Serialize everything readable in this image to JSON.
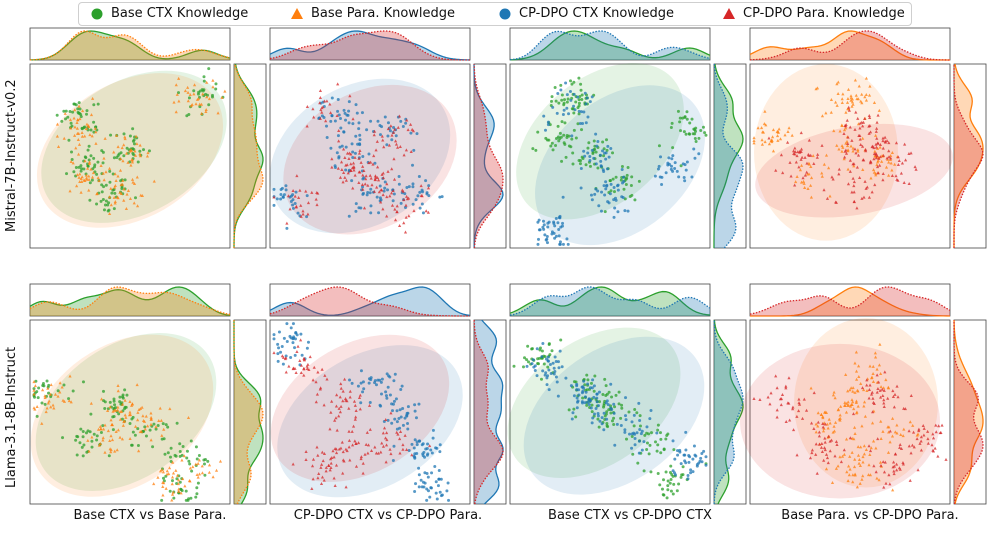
{
  "chart_data": {
    "type": "scatter",
    "legend": [
      {
        "label": "Base CTX Knowledge",
        "color": "#2ca02c",
        "marker": "circle"
      },
      {
        "label": "Base Para. Knowledge",
        "color": "#ff7f0e",
        "marker": "triangle"
      },
      {
        "label": "CP-DPO CTX Knowledge",
        "color": "#1f77b4",
        "marker": "circle"
      },
      {
        "label": "CP-DPO Para. Knowledge",
        "color": "#d62728",
        "marker": "triangle"
      }
    ],
    "rows": [
      {
        "label": "Mistral-7B-Instruct-v0.2"
      },
      {
        "label": "Llama-3.1-8B-Instruct"
      }
    ],
    "columns": [
      {
        "label": "Base CTX vs Base Para.",
        "series": [
          0,
          1
        ]
      },
      {
        "label": "CP-DPO CTX vs CP-DPO Para.",
        "series": [
          2,
          3
        ]
      },
      {
        "label": "Base CTX vs CP-DPO CTX",
        "series": [
          0,
          2
        ]
      },
      {
        "label": "Base Para. vs CP-DPO Para.",
        "series": [
          1,
          3
        ]
      }
    ],
    "panels": [
      {
        "row": 0,
        "col": 0,
        "clusters": [
          {
            "series": 0,
            "points": [
              [
                0.85,
                0.85
              ],
              [
                0.5,
                0.55
              ],
              [
                0.3,
                0.45
              ],
              [
                0.4,
                0.3
              ],
              [
                0.25,
                0.7
              ]
            ],
            "spread": 0.09,
            "count": 170
          },
          {
            "series": 1,
            "points": [
              [
                0.83,
                0.83
              ],
              [
                0.5,
                0.5
              ],
              [
                0.3,
                0.4
              ],
              [
                0.45,
                0.3
              ],
              [
                0.25,
                0.65
              ]
            ],
            "spread": 0.09,
            "count": 170
          }
        ],
        "ellipses": [
          {
            "series": 0,
            "cx": 0.52,
            "cy": 0.55,
            "rx": 0.5,
            "ry": 0.36,
            "angle": 30
          },
          {
            "series": 1,
            "cx": 0.5,
            "cy": 0.53,
            "rx": 0.5,
            "ry": 0.37,
            "angle": 30
          }
        ]
      },
      {
        "row": 0,
        "col": 1,
        "clusters": [
          {
            "series": 2,
            "points": [
              [
                0.1,
                0.25
              ],
              [
                0.4,
                0.5
              ],
              [
                0.6,
                0.65
              ],
              [
                0.35,
                0.7
              ],
              [
                0.75,
                0.3
              ],
              [
                0.5,
                0.3
              ]
            ],
            "spread": 0.1,
            "count": 180
          },
          {
            "series": 3,
            "points": [
              [
                0.15,
                0.25
              ],
              [
                0.4,
                0.45
              ],
              [
                0.62,
                0.6
              ],
              [
                0.3,
                0.75
              ],
              [
                0.7,
                0.25
              ],
              [
                0.5,
                0.35
              ]
            ],
            "spread": 0.1,
            "count": 180
          }
        ],
        "ellipses": [
          {
            "series": 2,
            "cx": 0.45,
            "cy": 0.5,
            "rx": 0.48,
            "ry": 0.38,
            "angle": 30
          },
          {
            "series": 3,
            "cx": 0.5,
            "cy": 0.48,
            "rx": 0.46,
            "ry": 0.37,
            "angle": 30
          }
        ]
      },
      {
        "row": 0,
        "col": 2,
        "clusters": [
          {
            "series": 0,
            "points": [
              [
                0.9,
                0.65
              ],
              [
                0.3,
                0.8
              ],
              [
                0.4,
                0.5
              ],
              [
                0.55,
                0.35
              ],
              [
                0.25,
                0.6
              ]
            ],
            "spread": 0.09,
            "count": 170
          },
          {
            "series": 2,
            "points": [
              [
                0.82,
                0.45
              ],
              [
                0.3,
                0.75
              ],
              [
                0.45,
                0.5
              ],
              [
                0.5,
                0.3
              ],
              [
                0.2,
                0.1
              ]
            ],
            "spread": 0.09,
            "count": 170
          }
        ],
        "ellipses": [
          {
            "series": 0,
            "cx": 0.45,
            "cy": 0.58,
            "rx": 0.48,
            "ry": 0.34,
            "angle": 40
          },
          {
            "series": 2,
            "cx": 0.55,
            "cy": 0.45,
            "rx": 0.48,
            "ry": 0.36,
            "angle": 40
          }
        ]
      },
      {
        "row": 0,
        "col": 3,
        "clusters": [
          {
            "series": 1,
            "points": [
              [
                0.1,
                0.6
              ],
              [
                0.5,
                0.8
              ],
              [
                0.5,
                0.55
              ],
              [
                0.3,
                0.4
              ],
              [
                0.65,
                0.45
              ]
            ],
            "spread": 0.09,
            "count": 160
          },
          {
            "series": 3,
            "points": [
              [
                0.25,
                0.5
              ],
              [
                0.6,
                0.5
              ],
              [
                0.75,
                0.45
              ],
              [
                0.5,
                0.3
              ],
              [
                0.55,
                0.65
              ]
            ],
            "spread": 0.1,
            "count": 170
          }
        ],
        "ellipses": [
          {
            "series": 1,
            "cx": 0.38,
            "cy": 0.52,
            "rx": 0.36,
            "ry": 0.48,
            "angle": 0
          },
          {
            "series": 3,
            "cx": 0.52,
            "cy": 0.42,
            "rx": 0.5,
            "ry": 0.24,
            "angle": 10
          }
        ]
      },
      {
        "row": 1,
        "col": 0,
        "clusters": [
          {
            "series": 0,
            "points": [
              [
                0.08,
                0.6
              ],
              [
                0.45,
                0.55
              ],
              [
                0.3,
                0.35
              ],
              [
                0.6,
                0.4
              ],
              [
                0.8,
                0.25
              ],
              [
                0.75,
                0.1
              ]
            ],
            "spread": 0.09,
            "count": 170
          },
          {
            "series": 1,
            "points": [
              [
                0.1,
                0.58
              ],
              [
                0.45,
                0.5
              ],
              [
                0.35,
                0.35
              ],
              [
                0.6,
                0.45
              ],
              [
                0.85,
                0.15
              ],
              [
                0.7,
                0.15
              ]
            ],
            "spread": 0.09,
            "count": 170
          }
        ],
        "ellipses": [
          {
            "series": 0,
            "cx": 0.48,
            "cy": 0.5,
            "rx": 0.5,
            "ry": 0.36,
            "angle": 35
          },
          {
            "series": 1,
            "cx": 0.46,
            "cy": 0.48,
            "rx": 0.5,
            "ry": 0.38,
            "angle": 35
          }
        ]
      },
      {
        "row": 1,
        "col": 1,
        "clusters": [
          {
            "series": 2,
            "points": [
              [
                0.1,
                0.85
              ],
              [
                0.55,
                0.65
              ],
              [
                0.65,
                0.5
              ],
              [
                0.75,
                0.3
              ],
              [
                0.8,
                0.1
              ]
            ],
            "spread": 0.09,
            "count": 170
          },
          {
            "series": 3,
            "points": [
              [
                0.15,
                0.75
              ],
              [
                0.35,
                0.55
              ],
              [
                0.4,
                0.3
              ],
              [
                0.3,
                0.2
              ],
              [
                0.6,
                0.35
              ]
            ],
            "spread": 0.1,
            "count": 170
          }
        ],
        "ellipses": [
          {
            "series": 2,
            "cx": 0.5,
            "cy": 0.45,
            "rx": 0.5,
            "ry": 0.36,
            "angle": 30
          },
          {
            "series": 3,
            "cx": 0.45,
            "cy": 0.52,
            "rx": 0.48,
            "ry": 0.35,
            "angle": 30
          }
        ]
      },
      {
        "row": 1,
        "col": 2,
        "clusters": [
          {
            "series": 0,
            "points": [
              [
                0.15,
                0.8
              ],
              [
                0.4,
                0.6
              ],
              [
                0.7,
                0.35
              ],
              [
                0.8,
                0.15
              ],
              [
                0.5,
                0.5
              ]
            ],
            "spread": 0.09,
            "count": 170
          },
          {
            "series": 2,
            "points": [
              [
                0.2,
                0.75
              ],
              [
                0.45,
                0.55
              ],
              [
                0.6,
                0.4
              ],
              [
                0.9,
                0.25
              ],
              [
                0.35,
                0.6
              ]
            ],
            "spread": 0.09,
            "count": 170
          }
        ],
        "ellipses": [
          {
            "series": 0,
            "cx": 0.42,
            "cy": 0.55,
            "rx": 0.48,
            "ry": 0.34,
            "angle": 35
          },
          {
            "series": 2,
            "cx": 0.52,
            "cy": 0.48,
            "rx": 0.5,
            "ry": 0.36,
            "angle": 35
          }
        ]
      },
      {
        "row": 1,
        "col": 3,
        "clusters": [
          {
            "series": 1,
            "points": [
              [
                0.5,
                0.55
              ],
              [
                0.4,
                0.45
              ],
              [
                0.6,
                0.7
              ],
              [
                0.7,
                0.4
              ],
              [
                0.55,
                0.2
              ]
            ],
            "spread": 0.1,
            "count": 170
          },
          {
            "series": 3,
            "points": [
              [
                0.2,
                0.55
              ],
              [
                0.35,
                0.3
              ],
              [
                0.7,
                0.2
              ],
              [
                0.65,
                0.6
              ],
              [
                0.85,
                0.35
              ]
            ],
            "spread": 0.1,
            "count": 170
          }
        ],
        "ellipses": [
          {
            "series": 1,
            "cx": 0.58,
            "cy": 0.55,
            "rx": 0.36,
            "ry": 0.46,
            "angle": 0
          },
          {
            "series": 3,
            "cx": 0.45,
            "cy": 0.45,
            "rx": 0.5,
            "ry": 0.42,
            "angle": 0
          }
        ]
      }
    ]
  }
}
